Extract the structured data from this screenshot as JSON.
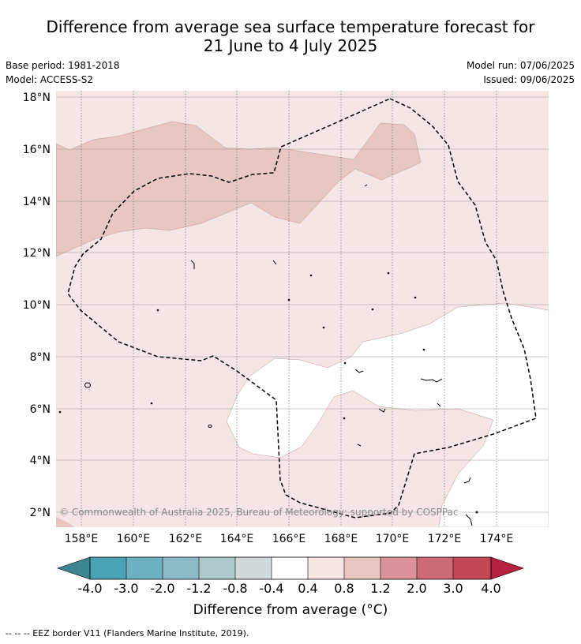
{
  "title_line1": "Difference from average sea surface temperature forecast for",
  "title_line2": "21 June to 4 July 2025",
  "base_period": "Base period: 1981-2018",
  "model": "Model: ACCESS-S2",
  "model_run": "Model run: 07/06/2025",
  "issued": "Issued: 09/06/2025",
  "credit": "© Commonwealth of Australia 2025, Bureau of Meteorology; supported by COSPPac",
  "colorbar_label": "Difference from average (°C)",
  "footnote": "--  --  -- EEZ border V11 (Flanders Marine Institute, 2019).",
  "map": {
    "lon_ticks": [
      "158°E",
      "160°E",
      "162°E",
      "164°E",
      "166°E",
      "168°E",
      "170°E",
      "172°E",
      "174°E"
    ],
    "lat_ticks": [
      "18°N",
      "16°N",
      "14°N",
      "12°N",
      "10°N",
      "8°N",
      "6°N",
      "4°N",
      "2°N"
    ]
  },
  "colorbar": {
    "ticks": [
      "-4.0",
      "-3.0",
      "-2.0",
      "-1.2",
      "-0.8",
      "-0.4",
      "0.4",
      "0.8",
      "1.2",
      "2.0",
      "3.0",
      "4.0"
    ],
    "colors": [
      "#3e8592",
      "#4aa3b5",
      "#6db0c0",
      "#8dbac4",
      "#aec8cc",
      "#d2d9da",
      "#ffffff",
      "#f5e6e5",
      "#e8c6c2",
      "#da939a",
      "#cc6a73",
      "#c14656",
      "#b7203e"
    ]
  }
}
